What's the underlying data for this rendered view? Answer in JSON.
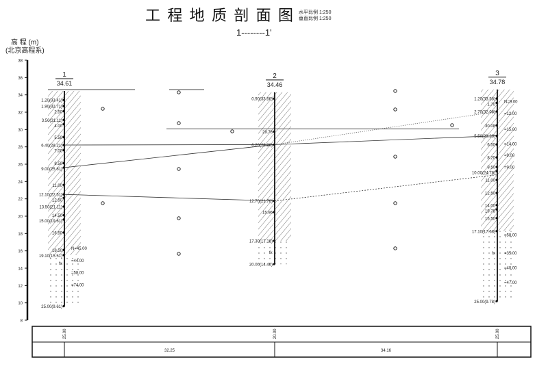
{
  "title": "工 程 地 质 剖 面 图",
  "scale_note": [
    "水平比例 1:250",
    "垂直比例 1:250"
  ],
  "section_label": "1--------1'",
  "axis": {
    "label": "高 程 (m)",
    "sublabel": "(北京高程系)",
    "min": 8,
    "max": 38,
    "step": 2
  },
  "boreholes": [
    {
      "number": "1",
      "elevation": "34.61",
      "top": 34.61,
      "labels": [
        [
          "1.20(33.41)",
          1.2
        ],
        [
          "1.90(32.71)",
          1.9
        ],
        [
          "2.50",
          2.5
        ],
        [
          "3.50(31.11)",
          3.5
        ],
        [
          "4.00",
          4.0
        ],
        [
          "5.50",
          5.5
        ],
        [
          "6.40(28.21)",
          6.4
        ],
        [
          "7.00",
          7.0
        ],
        [
          "8.50",
          8.5
        ],
        [
          "9.00(25.61)",
          9.0
        ],
        [
          "11.00",
          11.0
        ],
        [
          "12.10(22.51)",
          12.1
        ],
        [
          "12.50",
          12.5
        ],
        [
          "13.50(21.11)",
          13.5
        ],
        [
          "14.50",
          14.5
        ],
        [
          "15.00(19.61)",
          15.0
        ],
        [
          "16.50",
          16.5
        ],
        [
          "18.50",
          18.5
        ],
        [
          "19.10(15.51)",
          19.1
        ],
        [
          "25.00(9.61)",
          25.0
        ]
      ],
      "n_values": [
        [
          "N=45.00",
          18.3
        ],
        [
          "=44.00",
          19.7
        ],
        [
          "=58.00",
          21.1
        ],
        [
          "=74.00",
          22.5
        ]
      ],
      "fx": [
        "fx",
        20.0
      ],
      "hatch_to": 19.1,
      "bottom": 25.0
    },
    {
      "number": "2",
      "elevation": "34.46",
      "top": 34.46,
      "labels": [
        [
          "0.90(33.56)",
          0.9
        ],
        [
          "29.76",
          4.7
        ],
        [
          "6.20(28.26)",
          6.2
        ],
        [
          "12.70(21.76)",
          12.7
        ],
        [
          "15.96",
          14.0
        ],
        [
          "17.30(17.16)",
          17.3
        ],
        [
          "20.00(14.46)",
          20.0
        ]
      ],
      "n_values": [],
      "fx": [
        "fx",
        18.6
      ],
      "hatch_to": 17.3,
      "bottom": 20.0
    },
    {
      "number": "3",
      "elevation": "34.78",
      "top": 34.78,
      "labels": [
        [
          "1.20(33.58)",
          1.2
        ],
        [
          "1.70",
          1.7
        ],
        [
          "2.70(32.08)",
          2.7
        ],
        [
          "30.08",
          4.3
        ],
        [
          "5.50(29.28)",
          5.5
        ],
        [
          "6.50",
          6.5
        ],
        [
          "8.20",
          8.0
        ],
        [
          "9.50",
          9.1
        ],
        [
          "10.00(24.78)",
          9.6
        ],
        [
          "11.00",
          10.6
        ],
        [
          "12.50",
          12.1
        ],
        [
          "14.00",
          13.5
        ],
        [
          "19.78",
          14.0
        ],
        [
          "15.50",
          15.0
        ],
        [
          "17.10(17.68)",
          16.5
        ],
        [
          "25.00(9.78)",
          24.6
        ]
      ],
      "n_values": [
        [
          "N=9.00",
          1.5
        ],
        [
          "=12.00",
          2.9
        ],
        [
          "=15.00",
          4.7
        ],
        [
          "=14.00",
          6.4
        ],
        [
          "=9.00",
          7.7
        ],
        [
          "=9.00",
          9.1
        ],
        [
          "=58.00",
          16.9
        ],
        [
          "=35.00",
          19.0
        ],
        [
          "=40.00",
          20.7
        ],
        [
          "=47.00",
          22.4
        ]
      ],
      "fx": [
        "fx",
        19.0
      ],
      "hatch_to": 16.5,
      "bottom": 24.6
    }
  ],
  "table": {
    "depths": [
      "25.00",
      "20.00",
      "25.00"
    ],
    "distances": [
      "32.25",
      "34.16"
    ]
  },
  "colors": {
    "line": "#222222",
    "hatch": "#555555"
  }
}
